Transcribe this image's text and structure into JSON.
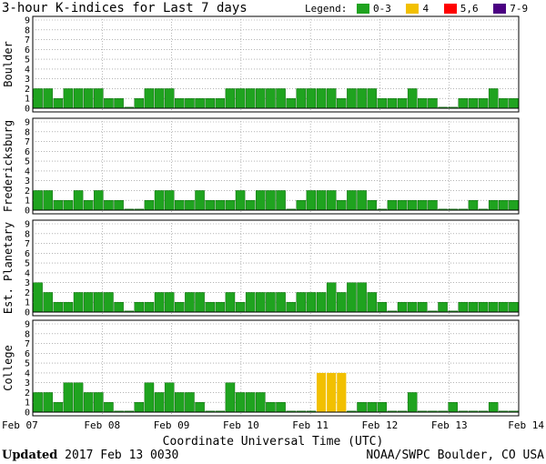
{
  "title": "3-hour K-indices for Last 7 days",
  "legend": {
    "label": "Legend:",
    "items": [
      {
        "label": "0-3",
        "color": "#008000",
        "fill": "#1fa31f"
      },
      {
        "label": "4",
        "color": "#f2c000",
        "fill": "#f2c000"
      },
      {
        "label": "5,6",
        "color": "#ff0000",
        "fill": "#ff0000"
      },
      {
        "label": "7-9",
        "color": "#4b0082",
        "fill": "#4b0082"
      }
    ]
  },
  "footer": {
    "updated_label": "Updated",
    "updated_value": "2017 Feb 13 0030",
    "credit": "NOAA/SWPC Boulder, CO USA"
  },
  "chart_data": {
    "type": "bar",
    "xlabel": "Coordinate Universal Time (UTC)",
    "x_ticks": [
      "Feb 07",
      "Feb 08",
      "Feb 09",
      "Feb 10",
      "Feb 11",
      "Feb 12",
      "Feb 13",
      "Feb 14"
    ],
    "y_ticks": [
      0,
      1,
      2,
      3,
      4,
      5,
      6,
      7,
      8,
      9
    ],
    "ylim": [
      0,
      9
    ],
    "bins_per_day": 8,
    "panels": [
      {
        "station": "Boulder",
        "values": [
          2,
          2,
          1,
          2,
          2,
          2,
          2,
          1,
          1,
          0,
          1,
          2,
          2,
          2,
          1,
          1,
          1,
          1,
          1,
          2,
          2,
          2,
          2,
          2,
          2,
          1,
          2,
          2,
          2,
          2,
          1,
          2,
          2,
          2,
          1,
          1,
          1,
          2,
          1,
          1,
          0,
          0,
          1,
          1,
          1,
          2,
          1,
          1
        ]
      },
      {
        "station": "Fredericksburg",
        "values": [
          2,
          2,
          1,
          1,
          2,
          1,
          2,
          1,
          1,
          0,
          0,
          1,
          2,
          2,
          1,
          1,
          2,
          1,
          1,
          1,
          2,
          1,
          2,
          2,
          2,
          0,
          1,
          2,
          2,
          2,
          1,
          2,
          2,
          1,
          0,
          1,
          1,
          1,
          1,
          1,
          0,
          0,
          0,
          1,
          0,
          1,
          1,
          1
        ]
      },
      {
        "station": "Est. Planetary",
        "values": [
          3,
          2,
          1,
          1,
          2,
          2,
          2,
          2,
          1,
          0,
          1,
          1,
          2,
          2,
          1,
          2,
          2,
          1,
          1,
          2,
          1,
          2,
          2,
          2,
          2,
          1,
          2,
          2,
          2,
          3,
          2,
          3,
          3,
          2,
          1,
          0,
          1,
          1,
          1,
          0,
          1,
          0,
          1,
          1,
          1,
          1,
          1,
          1
        ]
      },
      {
        "station": "College",
        "values": [
          2,
          2,
          1,
          3,
          3,
          2,
          2,
          1,
          0,
          0,
          1,
          3,
          2,
          3,
          2,
          2,
          1,
          0,
          0,
          3,
          2,
          2,
          2,
          1,
          1,
          0,
          0,
          0,
          4,
          4,
          4,
          0,
          1,
          1,
          1,
          0,
          0,
          2,
          0,
          0,
          0,
          1,
          0,
          0,
          0,
          1,
          0,
          0
        ]
      }
    ]
  }
}
